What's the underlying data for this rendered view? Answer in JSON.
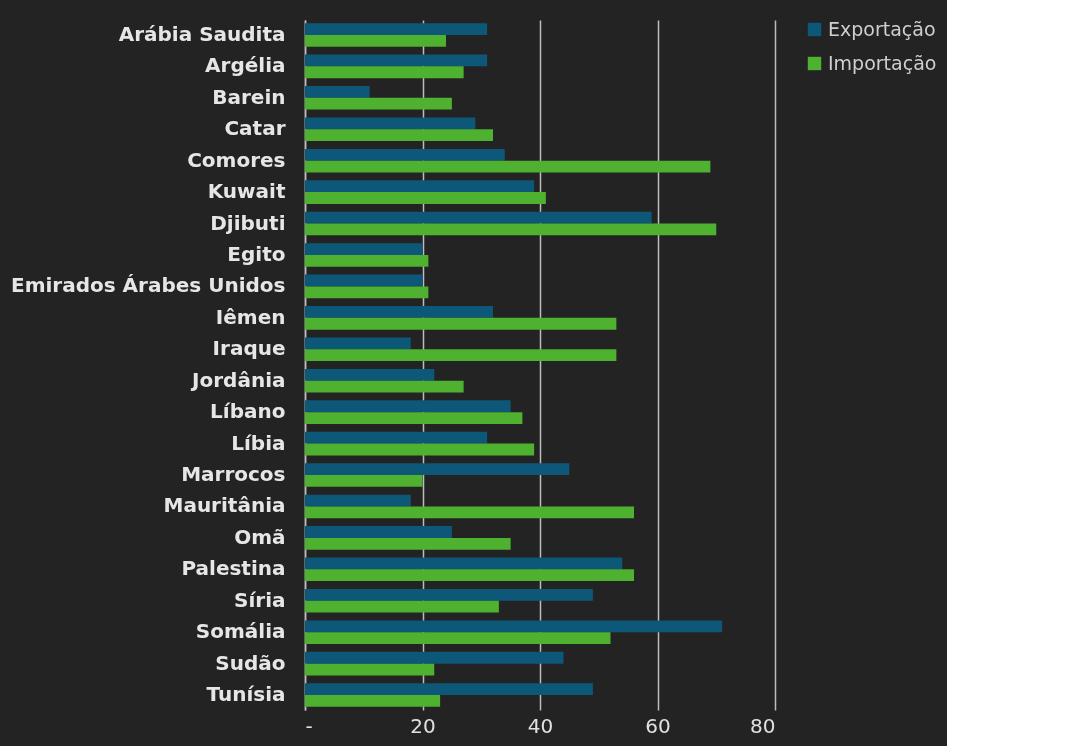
{
  "chart_data": {
    "type": "bar",
    "orientation": "horizontal",
    "categories": [
      "Arábia Saudita",
      "Argélia",
      "Barein",
      "Catar",
      "Comores",
      "Kuwait",
      "Djibuti",
      "Egito",
      "Emirados Árabes Unidos",
      "Iêmen",
      "Iraque",
      "Jordânia",
      "Líbano",
      "Líbia",
      "Marrocos",
      "Mauritânia",
      "Omã",
      "Palestina",
      "Síria",
      "Somália",
      "Sudão",
      "Tunísia"
    ],
    "series": [
      {
        "name": "Exportação",
        "color": "#0d5878",
        "values": [
          31,
          31,
          11,
          29,
          34,
          39,
          59,
          20,
          20,
          32,
          18,
          22,
          35,
          31,
          45,
          18,
          25,
          54,
          49,
          71,
          44,
          49
        ]
      },
      {
        "name": "Importação",
        "color": "#4fb130",
        "values": [
          24,
          27,
          25,
          32,
          69,
          41,
          70,
          21,
          21,
          53,
          53,
          27,
          37,
          39,
          20,
          56,
          35,
          56,
          33,
          52,
          22,
          23
        ]
      }
    ],
    "xlim": [
      0,
      80
    ],
    "xticks": [
      {
        "value": 0,
        "label": "-"
      },
      20,
      40,
      60,
      80
    ],
    "grid": "x",
    "legend": "right"
  }
}
